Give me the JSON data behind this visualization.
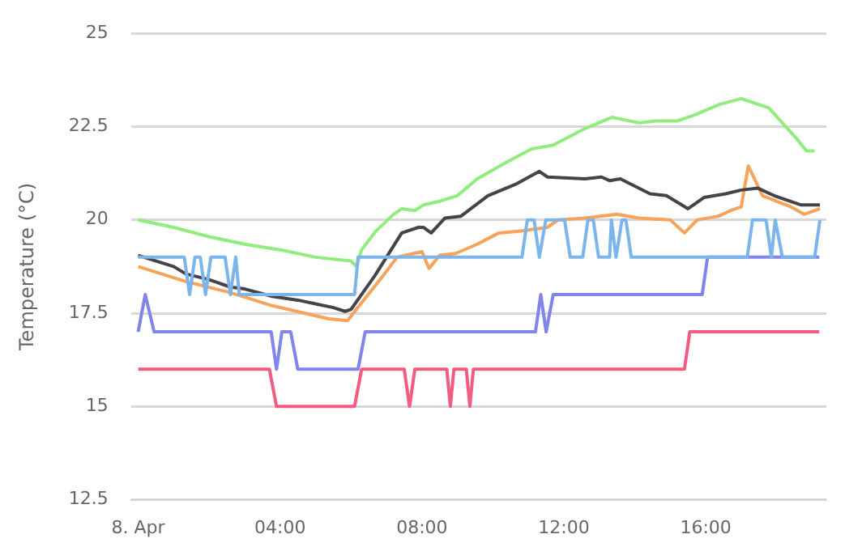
{
  "chart_data": {
    "type": "line",
    "ylabel": "Temperature (°C)",
    "marker": "none",
    "grid": "y",
    "legend": false,
    "xlim": [
      -0.2,
      19.4
    ],
    "xticks": [
      {
        "value": 0,
        "label": "8. Apr"
      },
      {
        "value": 4,
        "label": "04:00"
      },
      {
        "value": 8,
        "label": "08:00"
      },
      {
        "value": 12,
        "label": "12:00"
      },
      {
        "value": 16,
        "label": "16:00"
      }
    ],
    "ylim": [
      12.5,
      25
    ],
    "yticks": [
      12.5,
      15,
      17.5,
      20,
      22.5,
      25
    ],
    "series": [
      {
        "color": "#7cb5ec",
        "x": [
          0,
          1.3,
          1.45,
          1.6,
          1.75,
          1.9,
          2.05,
          2.45,
          2.6,
          2.75,
          2.85,
          6.1,
          6.2,
          10.82,
          10.97,
          11.16,
          11.31,
          11.49,
          12.02,
          12.18,
          12.53,
          12.68,
          12.83,
          12.98,
          13.29,
          13.34,
          13.47,
          13.64,
          13.75,
          13.9,
          17.17,
          17.32,
          17.7,
          17.85,
          17.96,
          18.16,
          19.07,
          19.22
        ],
        "values": [
          19,
          19,
          18,
          19,
          19,
          18,
          19,
          19,
          18,
          19,
          18,
          18,
          19,
          19,
          20,
          20,
          19,
          20,
          20,
          19,
          19,
          20,
          20,
          19,
          19,
          20,
          19,
          20,
          20,
          19,
          19,
          20,
          20,
          19,
          20,
          19,
          19,
          20
        ]
      },
      {
        "color": "#434348",
        "x": [
          0,
          1,
          1.35,
          2,
          2.6,
          3,
          3.78,
          4.5,
          5,
          5.5,
          5.83,
          6,
          6.67,
          7.43,
          7.9,
          8.04,
          8.26,
          8.65,
          9.1,
          9.86,
          10.63,
          11.31,
          11.54,
          12.6,
          13.06,
          13.3,
          13.59,
          14.43,
          14.89,
          15.5,
          15.95,
          16.56,
          17.0,
          17.47,
          17.93,
          18.69,
          19.22
        ],
        "values": [
          19.05,
          18.75,
          18.55,
          18.4,
          18.2,
          18.15,
          17.95,
          17.85,
          17.75,
          17.65,
          17.55,
          17.6,
          18.5,
          19.65,
          19.8,
          19.8,
          19.65,
          20.05,
          20.1,
          20.65,
          20.95,
          21.3,
          21.15,
          21.1,
          21.15,
          21.05,
          21.1,
          20.7,
          20.65,
          20.3,
          20.6,
          20.7,
          20.8,
          20.85,
          20.65,
          20.4,
          20.4
        ]
      },
      {
        "color": "#90ed7d",
        "x": [
          0,
          1,
          2,
          3,
          4,
          5,
          6,
          6.15,
          6.3,
          6.7,
          7.2,
          7.43,
          7.8,
          8.04,
          8.5,
          9,
          9.56,
          10.3,
          11.08,
          11.69,
          12.6,
          13.36,
          14.12,
          14.58,
          15.19,
          15.65,
          16.4,
          17.0,
          17.78,
          18.54,
          18.84,
          19.07
        ],
        "values": [
          20,
          19.8,
          19.55,
          19.35,
          19.2,
          19.0,
          18.9,
          18.75,
          19.2,
          19.7,
          20.15,
          20.3,
          20.25,
          20.4,
          20.5,
          20.65,
          21.1,
          21.5,
          21.9,
          22.0,
          22.45,
          22.75,
          22.6,
          22.65,
          22.65,
          22.8,
          23.1,
          23.25,
          23.0,
          22.2,
          21.85,
          21.85
        ]
      },
      {
        "color": "#f7a35c",
        "x": [
          0,
          1.34,
          2.6,
          3.78,
          5.37,
          5.9,
          6.9,
          7.3,
          8.0,
          8.2,
          8.5,
          8.95,
          9.56,
          10.17,
          10.78,
          11.54,
          11.84,
          12.6,
          13.5,
          14.12,
          15.0,
          15.4,
          15.76,
          16.36,
          16.7,
          17.0,
          17.2,
          17.6,
          18.4,
          18.77,
          19.22
        ],
        "values": [
          18.75,
          18.35,
          18.05,
          17.7,
          17.35,
          17.3,
          18.5,
          19.0,
          19.15,
          18.7,
          19.05,
          19.1,
          19.35,
          19.65,
          19.7,
          19.8,
          20.0,
          20.05,
          20.15,
          20.05,
          20.0,
          19.65,
          20.0,
          20.1,
          20.25,
          20.35,
          21.45,
          20.65,
          20.35,
          20.15,
          20.3
        ]
      },
      {
        "color": "#8085e9",
        "x": [
          0,
          0.2,
          0.45,
          3.75,
          3.9,
          4.05,
          4.3,
          4.5,
          6.2,
          6.4,
          11.2,
          11.35,
          11.5,
          11.7,
          15.9,
          16.05,
          19.2
        ],
        "values": [
          17,
          18,
          17,
          17,
          16,
          17,
          17,
          16,
          16,
          17,
          17,
          18,
          17,
          18,
          18,
          19,
          19
        ]
      },
      {
        "color": "#f15c80",
        "x": [
          0,
          3.7,
          3.9,
          6.1,
          6.3,
          7.5,
          7.65,
          7.8,
          8.7,
          8.8,
          8.9,
          9.25,
          9.35,
          9.45,
          15.4,
          15.55,
          19.2
        ],
        "values": [
          16,
          16,
          15,
          15,
          16,
          16,
          15,
          16,
          16,
          15,
          16,
          16,
          15,
          16,
          16,
          17,
          17
        ]
      }
    ]
  }
}
